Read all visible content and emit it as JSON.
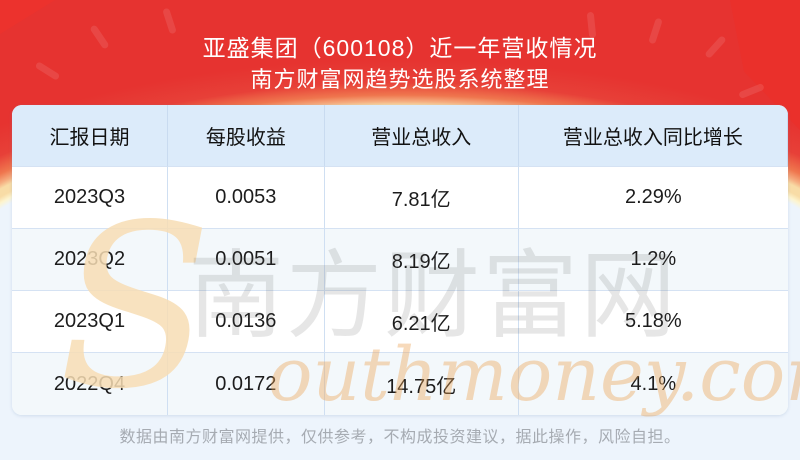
{
  "chart_data": {
    "type": "table",
    "title": "亚盛集团（600108）近一年营收情况",
    "subtitle": "南方财富网趋势选股系统整理",
    "columns": [
      "汇报日期",
      "每股收益",
      "营业总收入",
      "营业总收入同比增长"
    ],
    "rows": [
      [
        "2023Q3",
        "0.0053",
        "7.81亿",
        "2.29%"
      ],
      [
        "2023Q2",
        "0.0051",
        "8.19亿",
        "1.2%"
      ],
      [
        "2023Q1",
        "0.0136",
        "6.21亿",
        "5.18%"
      ],
      [
        "2022Q4",
        "0.0172",
        "14.75亿",
        "4.1%"
      ]
    ]
  },
  "watermark": {
    "initial": "S",
    "cn": "南方财富网",
    "en_rest": "outhmoney.com"
  },
  "footer": {
    "disclaimer": "数据由南方财富网提供，仅供参考，不构成投资建议，据此操作，风险自担。"
  },
  "colors": {
    "hero_red_top": "#e63330",
    "hero_orange": "#f5ad80",
    "arc_cream": "#f8dca6",
    "page_bg": "#edf4fc",
    "table_header_bg": "#dcebfa",
    "row_alt_bg": "#f3f8fb",
    "cell_border": "#cfdff2",
    "text_dark": "#1c1c1c",
    "footer_text": "#a6abb2"
  }
}
